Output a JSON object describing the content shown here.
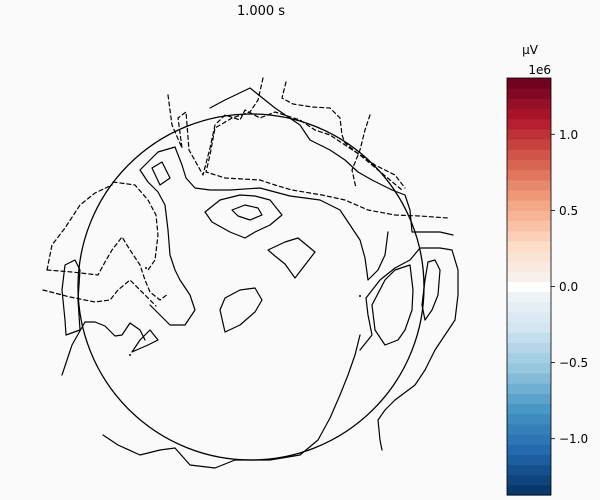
{
  "chart_data": {
    "type": "heatmap",
    "title": "1.000 s",
    "colorbar": {
      "unit_label": "µV",
      "scale_label": "1e6",
      "ticks": [
        1.0,
        0.5,
        0.0,
        -0.5,
        -1.0
      ],
      "tick_labels": [
        "1.0",
        "0.5",
        "0.0",
        "−0.5",
        "−1.0"
      ],
      "range": [
        -1.37,
        1.37
      ],
      "levels": 41,
      "colormap": "RdBu_r",
      "low_color": "#08306b",
      "mid_color": "#f7f7f7",
      "high_color": "#67000d"
    },
    "contour_line_color": "#000000",
    "negative_contours": "dashed",
    "positive_contours": "solid"
  }
}
